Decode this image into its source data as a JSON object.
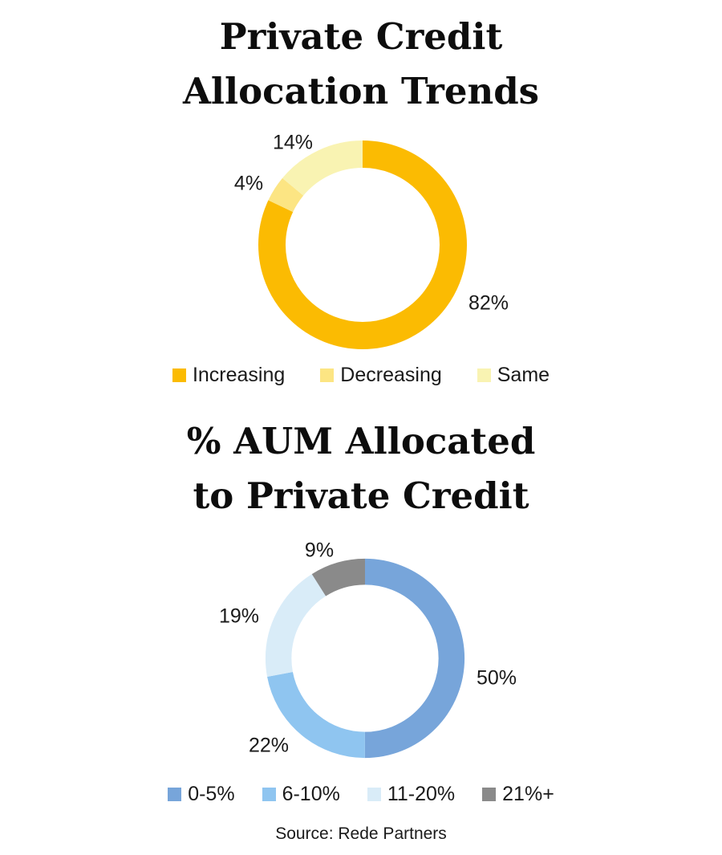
{
  "page": {
    "background": "#ffffff",
    "text_color": "#1a1a1a"
  },
  "source_note": "Source: Rede Partners",
  "chart_data": [
    {
      "type": "pie",
      "subtype": "donut",
      "title": "Private Credit Allocation Trends",
      "title_lines": [
        "Private Credit",
        "Allocation Trends"
      ],
      "categories": [
        "Increasing",
        "Decreasing",
        "Same"
      ],
      "values": [
        82,
        4,
        14
      ],
      "labels": [
        "82%",
        "4%",
        "14%"
      ],
      "colors": [
        "#FBBB02",
        "#FCE583",
        "#F9F3B2"
      ],
      "start_angle_deg": 0,
      "direction": "clockwise",
      "legend_position": "bottom"
    },
    {
      "type": "pie",
      "subtype": "donut",
      "title": "% AUM Allocated to Private Credit",
      "title_lines": [
        "% AUM Allocated",
        "to Private Credit"
      ],
      "categories": [
        "0-5%",
        "6-10%",
        "11-20%",
        "21%+"
      ],
      "values": [
        50,
        22,
        19,
        9
      ],
      "labels": [
        "50%",
        "22%",
        "19%",
        "9%"
      ],
      "colors": [
        "#77A5DA",
        "#8FC5F0",
        "#D9ECF8",
        "#8A8A8A"
      ],
      "start_angle_deg": 0,
      "direction": "clockwise",
      "legend_position": "bottom"
    }
  ]
}
